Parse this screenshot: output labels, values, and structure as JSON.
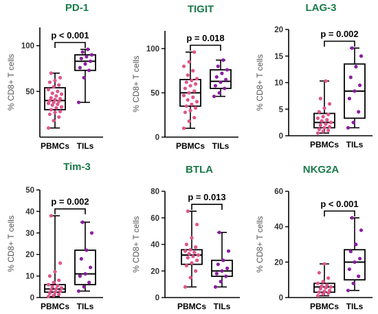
{
  "colors": {
    "title": "#1a7a4a",
    "pbmc_point": "#e0558a",
    "til_point": "#8a1fa0",
    "box_line": "#000000",
    "axis": "#000000"
  },
  "chart_data": [
    {
      "type": "box",
      "title": "PD-1",
      "ylabel": "% CD8+ T cells",
      "ylim": [
        0,
        120
      ],
      "yticks": [
        50,
        100
      ],
      "categories": [
        "PBMCs",
        "TILs"
      ],
      "p_value": "p < 0.001",
      "groups": [
        {
          "name": "PBMCs",
          "min": 10,
          "q1": 30,
          "median": 40,
          "q3": 54,
          "max": 70,
          "points": [
            10,
            18,
            22,
            25,
            27,
            28,
            30,
            32,
            33,
            35,
            36,
            37,
            38,
            39,
            40,
            41,
            42,
            43,
            45,
            47,
            48,
            50,
            52,
            55,
            57,
            60,
            62,
            65,
            70
          ]
        },
        {
          "name": "TILs",
          "min": 38,
          "q1": 73,
          "median": 83,
          "q3": 90,
          "max": 96,
          "points": [
            38,
            65,
            73,
            76,
            80,
            83,
            86,
            88,
            90,
            93,
            96
          ]
        }
      ]
    },
    {
      "type": "box",
      "title": "TIGIT",
      "ylabel": "% CD8+ T cells",
      "ylim": [
        0,
        120
      ],
      "yticks": [
        0,
        50,
        100
      ],
      "categories": [
        "PBMCs",
        "TILs"
      ],
      "p_value": "p = 0.018",
      "groups": [
        {
          "name": "PBMCs",
          "min": 10,
          "q1": 35,
          "median": 50,
          "q3": 65,
          "max": 96,
          "points": [
            10,
            18,
            22,
            28,
            30,
            33,
            35,
            37,
            40,
            42,
            45,
            47,
            50,
            52,
            55,
            58,
            60,
            62,
            64,
            66,
            70,
            75,
            80,
            85,
            96
          ]
        },
        {
          "name": "TILs",
          "min": 46,
          "q1": 55,
          "median": 63,
          "q3": 76,
          "max": 87,
          "points": [
            46,
            50,
            55,
            58,
            62,
            65,
            68,
            72,
            76,
            80,
            87
          ]
        }
      ]
    },
    {
      "type": "box",
      "title": "LAG-3",
      "ylabel": "% CD8+ T cells",
      "ylim": [
        0,
        20
      ],
      "yticks": [
        0,
        5,
        10,
        15,
        20
      ],
      "categories": [
        "PBMCs",
        "TILs"
      ],
      "p_value": "p = 0.002",
      "groups": [
        {
          "name": "PBMCs",
          "min": 0.5,
          "q1": 1.5,
          "median": 2.5,
          "q3": 4.2,
          "max": 10.3,
          "points": [
            0.5,
            0.8,
            1.0,
            1.2,
            1.5,
            1.7,
            2.0,
            2.2,
            2.5,
            2.8,
            3.0,
            3.3,
            3.6,
            4.0,
            4.5,
            5.2,
            6.0,
            7.0,
            10.3
          ]
        },
        {
          "name": "TILs",
          "min": 1.5,
          "q1": 3.3,
          "median": 8.4,
          "q3": 13.5,
          "max": 16.5,
          "points": [
            1.5,
            2.5,
            4.5,
            7.0,
            8.4,
            9.5,
            11.0,
            13.0,
            15.0,
            16.5
          ]
        }
      ]
    },
    {
      "type": "box",
      "title": "Tim-3",
      "ylabel": "% CD8+ T cells",
      "ylim": [
        0,
        50
      ],
      "yticks": [
        0,
        10,
        20,
        30,
        40,
        50
      ],
      "categories": [
        "PBMCs",
        "TILs"
      ],
      "p_value": "p = 0.002",
      "groups": [
        {
          "name": "PBMCs",
          "min": 0.5,
          "q1": 2.5,
          "median": 4,
          "q3": 6,
          "max": 38,
          "points": [
            0.5,
            1,
            1.5,
            2,
            2.5,
            3,
            3.5,
            4,
            4.5,
            5,
            5.5,
            6,
            7,
            8,
            10,
            12,
            16,
            38
          ]
        },
        {
          "name": "TILs",
          "min": 3,
          "q1": 6,
          "median": 11,
          "q3": 22,
          "max": 35,
          "points": [
            3,
            5,
            7,
            10,
            11,
            14,
            18,
            22,
            30,
            35
          ]
        }
      ]
    },
    {
      "type": "box",
      "title": "BTLA",
      "ylabel": "% CD8+ T cells",
      "ylim": [
        0,
        80
      ],
      "yticks": [
        0,
        20,
        40,
        60,
        80
      ],
      "categories": [
        "PBMCs",
        "TILs"
      ],
      "p_value": "p = 0.013",
      "groups": [
        {
          "name": "PBMCs",
          "min": 8,
          "q1": 25,
          "median": 32,
          "q3": 36,
          "max": 65,
          "points": [
            8,
            15,
            20,
            24,
            26,
            28,
            30,
            31,
            32,
            33,
            34,
            35,
            36,
            38,
            40,
            45,
            55,
            65
          ]
        },
        {
          "name": "TILs",
          "min": 8,
          "q1": 16,
          "median": 20,
          "q3": 28,
          "max": 49,
          "points": [
            8,
            12,
            16,
            18,
            20,
            22,
            25,
            28,
            35,
            49
          ]
        }
      ]
    },
    {
      "type": "box",
      "title": "NKG2A",
      "ylabel": "% CD8+ T cells",
      "ylim": [
        0,
        60
      ],
      "yticks": [
        0,
        20,
        40,
        60
      ],
      "categories": [
        "PBMCs",
        "TILs"
      ],
      "p_value": "p < 0.001",
      "groups": [
        {
          "name": "PBMCs",
          "min": 1,
          "q1": 3,
          "median": 6,
          "q3": 8,
          "max": 19,
          "points": [
            1,
            2,
            2.5,
            3,
            3.5,
            4,
            5,
            5.5,
            6,
            6.5,
            7,
            8,
            9,
            11,
            14,
            19
          ]
        },
        {
          "name": "TILs",
          "min": 4,
          "q1": 10,
          "median": 20,
          "q3": 27,
          "max": 45,
          "points": [
            4,
            8,
            12,
            16,
            20,
            22,
            26,
            30,
            38,
            45
          ]
        }
      ]
    }
  ]
}
